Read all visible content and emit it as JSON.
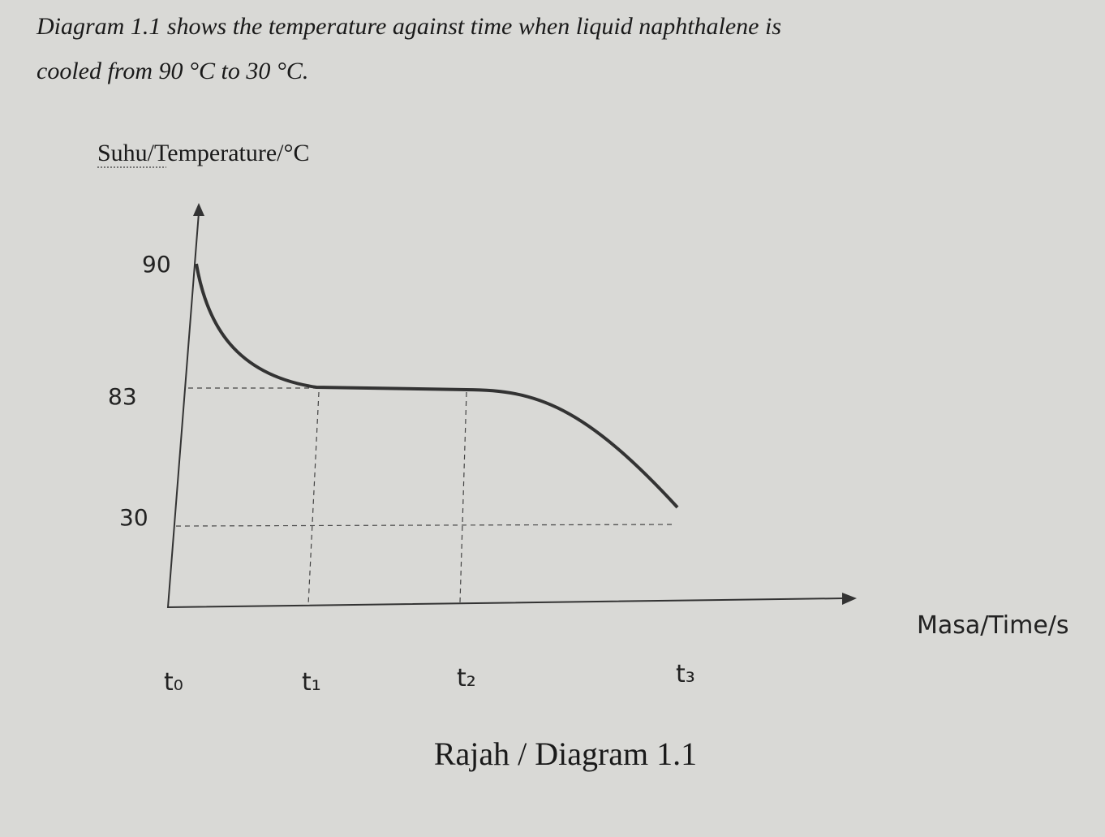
{
  "intro": {
    "lines": [
      "Diagram 1.1 shows the temperature against time when liquid naphthalene is",
      "cooled from 90 °C to 30 °C."
    ]
  },
  "diagram": {
    "y_label": "Suhu/Temperature/°C",
    "x_label": "Masa/Time/s",
    "y_labels": [
      "90",
      "83",
      "30"
    ],
    "time_labels": [
      "t₀",
      "t₁",
      "t₂",
      "t₃"
    ],
    "caption": "Rajah / Diagram 1.1"
  }
}
